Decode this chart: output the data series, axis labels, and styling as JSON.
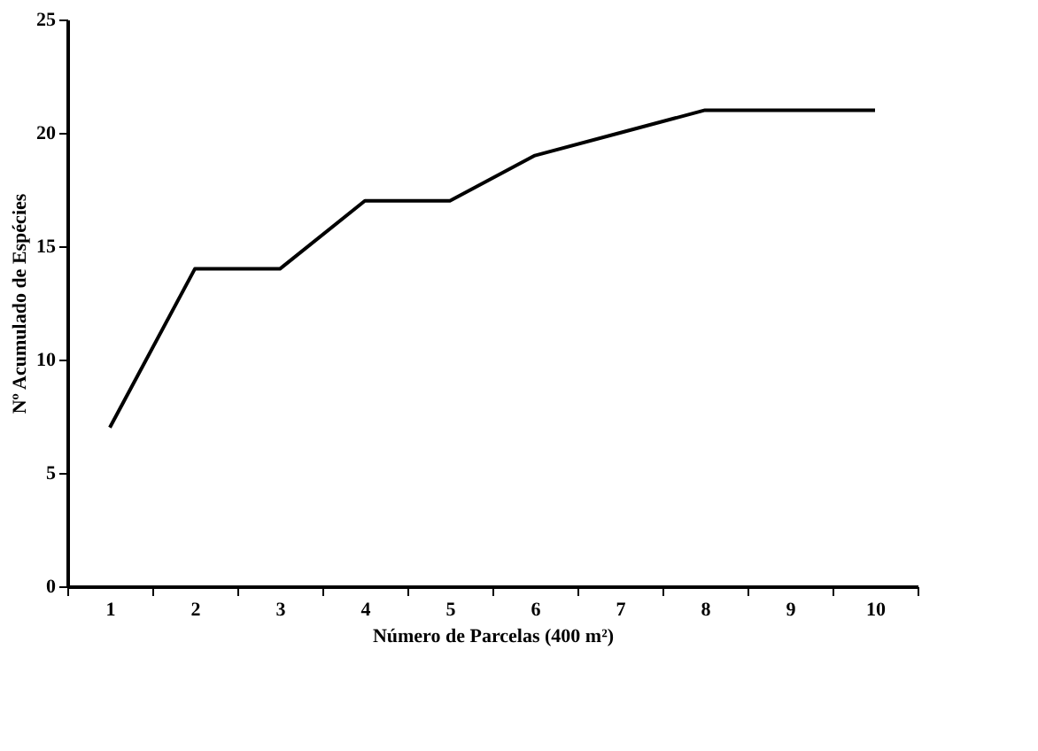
{
  "chart_data": {
    "type": "line",
    "xlabel": "Número de Parcelas (400 m²)",
    "ylabel": "Nº Acumulado de Espécies",
    "categories": [
      "1",
      "2",
      "3",
      "4",
      "5",
      "6",
      "7",
      "8",
      "9",
      "10"
    ],
    "series": [
      {
        "color": "#000000",
        "values": [
          7,
          14,
          14,
          17,
          17,
          19,
          20,
          21,
          21,
          21
        ]
      }
    ],
    "ylim": [
      0,
      25
    ],
    "yticks": [
      0,
      5,
      10,
      15,
      20,
      25
    ],
    "grid": false,
    "marker": "none",
    "line_style": "solid"
  }
}
